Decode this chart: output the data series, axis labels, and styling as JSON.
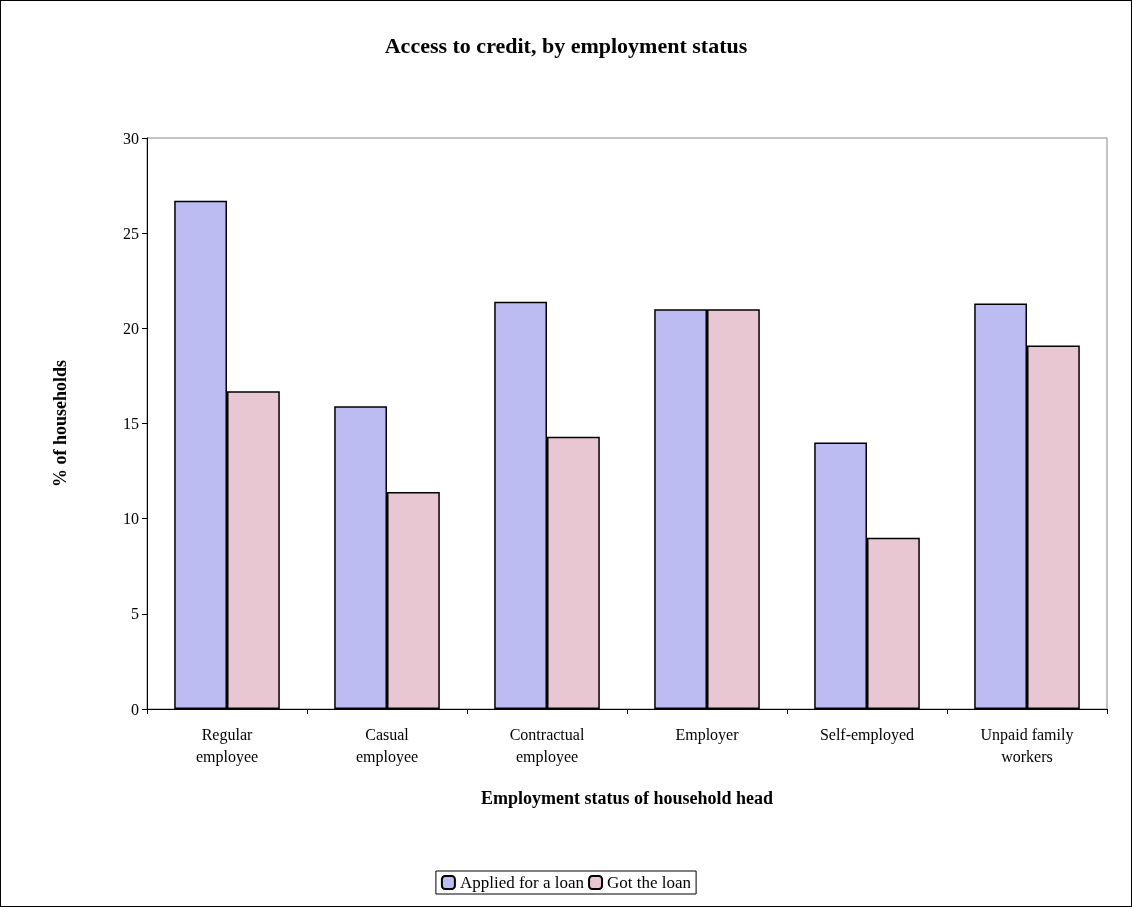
{
  "chart_data": {
    "type": "bar",
    "title": "Access to credit, by employment status",
    "xlabel": "Employment status of household head",
    "ylabel": "% of households",
    "categories": [
      "Regular\nemployee",
      "Casual\nemployee",
      "Contractual\nemployee",
      "Employer",
      "Self-employed",
      "Unpaid family\nworkers"
    ],
    "series": [
      {
        "name": "Applied for a loan",
        "color": "#bcbcf2",
        "values": [
          26.7,
          15.9,
          21.4,
          21.0,
          14.0,
          21.3
        ]
      },
      {
        "name": "Got the loan",
        "color": "#e8c6d2",
        "values": [
          16.7,
          11.4,
          14.3,
          21.0,
          9.0,
          19.1
        ]
      }
    ],
    "ylim": [
      0,
      30
    ],
    "yticks": [
      0,
      5,
      10,
      15,
      20,
      25,
      30
    ],
    "grid": false,
    "legend": "bottom"
  }
}
